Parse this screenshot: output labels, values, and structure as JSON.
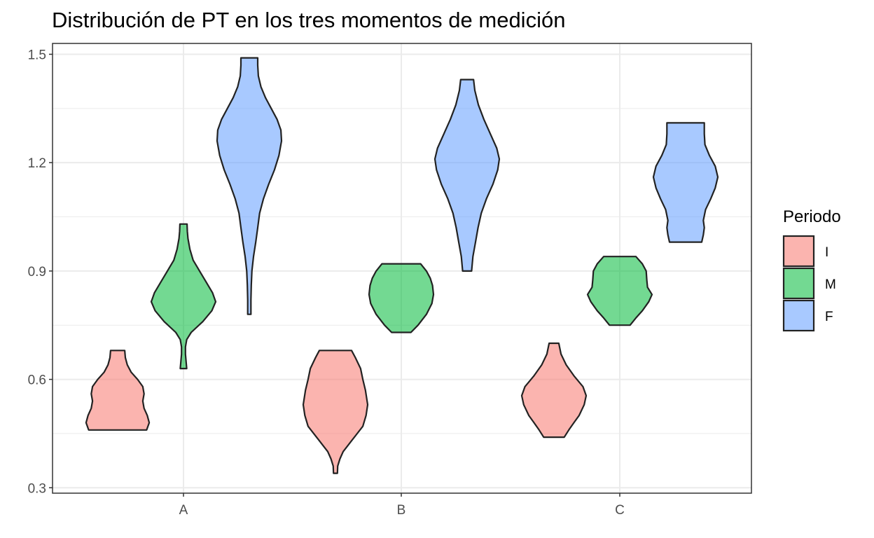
{
  "chart_data": {
    "type": "violin",
    "title": "Distribución de PT en los tres momentos de medición",
    "xlabel": "",
    "ylabel": "",
    "categories": [
      "A",
      "B",
      "C"
    ],
    "y_ticks": [
      "0.3",
      "0.6",
      "0.9",
      "1.2",
      "1.5"
    ],
    "ylim": [
      0.285,
      1.53
    ],
    "grid": true,
    "legend": {
      "title": "Periodo",
      "position": "right",
      "entries": [
        {
          "label": "I",
          "color": "#F8766D"
        },
        {
          "label": "M",
          "color": "#00BA38"
        },
        {
          "label": "F",
          "color": "#619CFF"
        }
      ]
    },
    "series": [
      {
        "name": "I",
        "color": "#F8766D",
        "violins": [
          {
            "category": "A",
            "min": 0.46,
            "max": 0.68,
            "profile": [
              [
                0.46,
                0.9
              ],
              [
                0.48,
                0.98
              ],
              [
                0.5,
                0.92
              ],
              [
                0.52,
                0.82
              ],
              [
                0.54,
                0.78
              ],
              [
                0.56,
                0.82
              ],
              [
                0.58,
                0.78
              ],
              [
                0.6,
                0.62
              ],
              [
                0.62,
                0.42
              ],
              [
                0.64,
                0.3
              ],
              [
                0.66,
                0.24
              ],
              [
                0.68,
                0.22
              ]
            ]
          },
          {
            "category": "B",
            "min": 0.34,
            "max": 0.68,
            "profile": [
              [
                0.34,
                0.06
              ],
              [
                0.36,
                0.07
              ],
              [
                0.38,
                0.14
              ],
              [
                0.4,
                0.24
              ],
              [
                0.43,
                0.5
              ],
              [
                0.47,
                0.85
              ],
              [
                0.5,
                0.95
              ],
              [
                0.53,
                1.0
              ],
              [
                0.57,
                0.93
              ],
              [
                0.6,
                0.85
              ],
              [
                0.63,
                0.78
              ],
              [
                0.66,
                0.62
              ],
              [
                0.68,
                0.5
              ]
            ]
          },
          {
            "category": "C",
            "min": 0.44,
            "max": 0.7,
            "profile": [
              [
                0.44,
                0.32
              ],
              [
                0.46,
                0.46
              ],
              [
                0.48,
                0.62
              ],
              [
                0.5,
                0.78
              ],
              [
                0.53,
                0.94
              ],
              [
                0.555,
                1.0
              ],
              [
                0.58,
                0.9
              ],
              [
                0.61,
                0.62
              ],
              [
                0.64,
                0.38
              ],
              [
                0.67,
                0.22
              ],
              [
                0.7,
                0.15
              ]
            ]
          }
        ]
      },
      {
        "name": "M",
        "color": "#00BA38",
        "violins": [
          {
            "category": "A",
            "min": 0.63,
            "max": 1.03,
            "profile": [
              [
                0.63,
                0.1
              ],
              [
                0.65,
                0.08
              ],
              [
                0.67,
                0.06
              ],
              [
                0.69,
                0.06
              ],
              [
                0.71,
                0.1
              ],
              [
                0.73,
                0.24
              ],
              [
                0.76,
                0.6
              ],
              [
                0.79,
                0.88
              ],
              [
                0.815,
                1.0
              ],
              [
                0.84,
                0.9
              ],
              [
                0.87,
                0.7
              ],
              [
                0.9,
                0.5
              ],
              [
                0.93,
                0.3
              ],
              [
                0.96,
                0.2
              ],
              [
                0.99,
                0.14
              ],
              [
                1.01,
                0.12
              ],
              [
                1.03,
                0.11
              ]
            ]
          },
          {
            "category": "B",
            "min": 0.73,
            "max": 0.92,
            "profile": [
              [
                0.73,
                0.3
              ],
              [
                0.75,
                0.52
              ],
              [
                0.78,
                0.78
              ],
              [
                0.81,
                0.95
              ],
              [
                0.835,
                1.0
              ],
              [
                0.86,
                0.97
              ],
              [
                0.88,
                0.9
              ],
              [
                0.9,
                0.78
              ],
              [
                0.92,
                0.6
              ]
            ]
          },
          {
            "category": "C",
            "min": 0.75,
            "max": 0.94,
            "profile": [
              [
                0.75,
                0.32
              ],
              [
                0.77,
                0.5
              ],
              [
                0.79,
                0.7
              ],
              [
                0.815,
                0.9
              ],
              [
                0.835,
                1.0
              ],
              [
                0.855,
                0.86
              ],
              [
                0.875,
                0.84
              ],
              [
                0.9,
                0.82
              ],
              [
                0.92,
                0.7
              ],
              [
                0.94,
                0.5
              ]
            ]
          }
        ]
      },
      {
        "name": "F",
        "color": "#619CFF",
        "violins": [
          {
            "category": "A",
            "min": 0.78,
            "max": 1.49,
            "profile": [
              [
                0.78,
                0.05
              ],
              [
                0.82,
                0.05
              ],
              [
                0.86,
                0.06
              ],
              [
                0.9,
                0.08
              ],
              [
                0.94,
                0.13
              ],
              [
                0.98,
                0.2
              ],
              [
                1.02,
                0.26
              ],
              [
                1.06,
                0.32
              ],
              [
                1.1,
                0.44
              ],
              [
                1.14,
                0.6
              ],
              [
                1.18,
                0.78
              ],
              [
                1.22,
                0.92
              ],
              [
                1.26,
                1.0
              ],
              [
                1.29,
                0.98
              ],
              [
                1.32,
                0.86
              ],
              [
                1.35,
                0.68
              ],
              [
                1.38,
                0.5
              ],
              [
                1.41,
                0.36
              ],
              [
                1.44,
                0.28
              ],
              [
                1.47,
                0.26
              ],
              [
                1.49,
                0.26
              ]
            ]
          },
          {
            "category": "B",
            "min": 0.9,
            "max": 1.43,
            "profile": [
              [
                0.9,
                0.14
              ],
              [
                0.94,
                0.18
              ],
              [
                0.98,
                0.26
              ],
              [
                1.02,
                0.34
              ],
              [
                1.06,
                0.44
              ],
              [
                1.1,
                0.6
              ],
              [
                1.14,
                0.8
              ],
              [
                1.18,
                0.95
              ],
              [
                1.21,
                1.0
              ],
              [
                1.24,
                0.92
              ],
              [
                1.28,
                0.72
              ],
              [
                1.32,
                0.52
              ],
              [
                1.36,
                0.35
              ],
              [
                1.4,
                0.24
              ],
              [
                1.43,
                0.2
              ]
            ]
          },
          {
            "category": "C",
            "min": 0.98,
            "max": 1.31,
            "profile": [
              [
                0.98,
                0.5
              ],
              [
                1.0,
                0.55
              ],
              [
                1.02,
                0.58
              ],
              [
                1.04,
                0.55
              ],
              [
                1.07,
                0.62
              ],
              [
                1.1,
                0.78
              ],
              [
                1.13,
                0.92
              ],
              [
                1.16,
                1.0
              ],
              [
                1.19,
                0.92
              ],
              [
                1.22,
                0.74
              ],
              [
                1.25,
                0.6
              ],
              [
                1.28,
                0.58
              ],
              [
                1.31,
                0.58
              ]
            ]
          }
        ]
      }
    ]
  }
}
